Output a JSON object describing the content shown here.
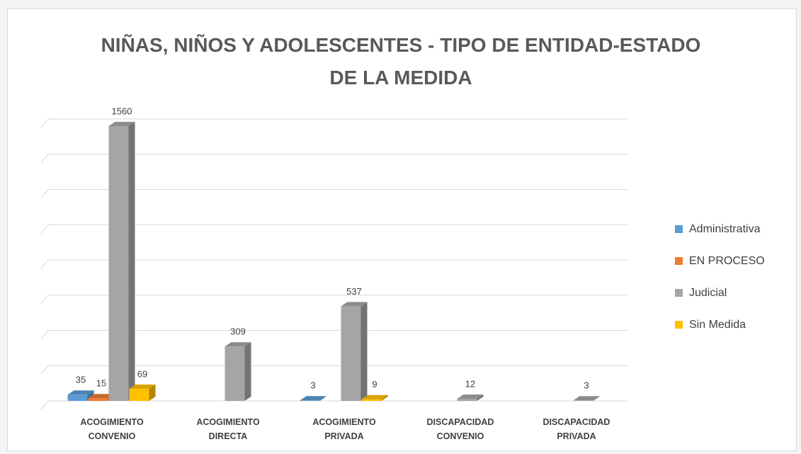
{
  "chart_data": {
    "type": "bar3d",
    "title": "NIÑAS, NIÑOS Y ADOLESCENTES - TIPO DE ENTIDAD-ESTADO DE LA MEDIDA",
    "categories": [
      "ACOGIMIENTO CONVENIO",
      "ACOGIMIENTO DIRECTA",
      "ACOGIMIENTO PRIVADA",
      "DISCAPACIDAD CONVENIO",
      "DISCAPACIDAD PRIVADA"
    ],
    "series": [
      {
        "name": "Administrativa",
        "color": "#5b9bd5",
        "values": [
          35,
          null,
          3,
          null,
          null
        ]
      },
      {
        "name": "EN PROCESO",
        "color": "#ed7d31",
        "values": [
          15,
          null,
          null,
          null,
          null
        ]
      },
      {
        "name": "Judicial",
        "color": "#a5a5a5",
        "values": [
          1560,
          309,
          537,
          12,
          3
        ]
      },
      {
        "name": "Sin Medida",
        "color": "#ffc000",
        "values": [
          69,
          null,
          9,
          null,
          null
        ]
      }
    ],
    "ylim": [
      0,
      1600
    ],
    "yticks": [
      0,
      200,
      400,
      600,
      800,
      1000,
      1200,
      1400,
      1600
    ],
    "grid": true,
    "legend": "right"
  }
}
